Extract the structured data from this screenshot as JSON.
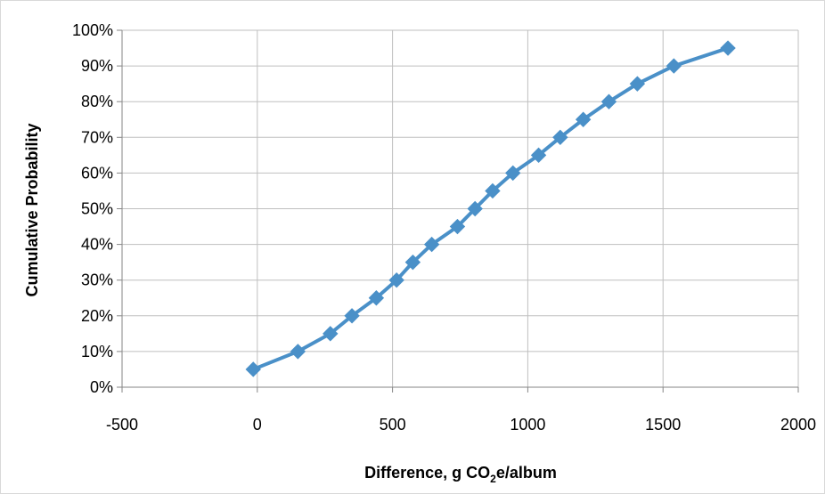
{
  "chart_data": {
    "type": "line",
    "title": "",
    "xlabel_parts": [
      "Difference, g CO",
      "2",
      "e/album"
    ],
    "ylabel": "Cumulative Probability",
    "xlim": [
      -500,
      2000
    ],
    "ylim": [
      0,
      1
    ],
    "x_ticks": [
      "-500",
      "0",
      "500",
      "1000",
      "1500",
      "2000"
    ],
    "x_tick_values": [
      -500,
      0,
      500,
      1000,
      1500,
      2000
    ],
    "y_ticks": [
      "0%",
      "10%",
      "20%",
      "30%",
      "40%",
      "50%",
      "60%",
      "70%",
      "80%",
      "90%",
      "100%"
    ],
    "y_tick_values": [
      0,
      0.1,
      0.2,
      0.3,
      0.4,
      0.5,
      0.6,
      0.7,
      0.8,
      0.9,
      1.0
    ],
    "grid": true,
    "legend": "none",
    "series": [
      {
        "color": "#4a90c8",
        "marker": "diamond",
        "x": [
          -15,
          150,
          270,
          350,
          440,
          515,
          575,
          645,
          740,
          805,
          870,
          945,
          1040,
          1120,
          1205,
          1300,
          1405,
          1540,
          1740
        ],
        "y": [
          0.05,
          0.1,
          0.15,
          0.2,
          0.25,
          0.3,
          0.35,
          0.4,
          0.45,
          0.5,
          0.55,
          0.6,
          0.65,
          0.7,
          0.75,
          0.8,
          0.85,
          0.9,
          0.95
        ]
      }
    ],
    "colors": {
      "grid": "#bfbfbf",
      "axis": "#868686"
    }
  }
}
